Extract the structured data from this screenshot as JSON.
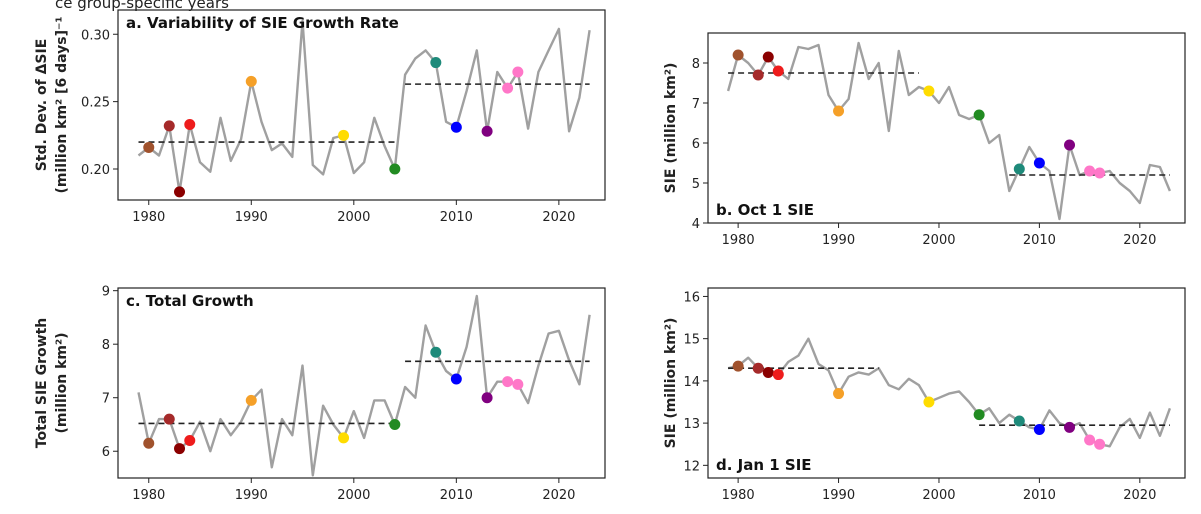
{
  "figure": {
    "top_caption": "ce group-specific years"
  },
  "colors": {
    "line": "#a0a0a0",
    "dashed": "#222222",
    "markers": {
      "1980": "#a0522d",
      "1982": "#a52a2a",
      "1983": "#8b0000",
      "1984": "#ee1c1c",
      "1990": "#f5a028",
      "1999": "#ffdc00",
      "2004": "#228b22",
      "2008": "#1e8a7a",
      "2010": "#0000ff",
      "2013": "#800080",
      "2015": "#ff77c8",
      "2016": "#ff77c8"
    }
  },
  "chart_data": [
    {
      "id": "a",
      "type": "line",
      "title": "a. Variability of SIE Growth Rate",
      "ylabel": [
        "Std. Dev. of ΔSIE",
        "(million km² [6 days]⁻¹"
      ],
      "xlim": [
        1977,
        2024.5
      ],
      "ylim": [
        0.177,
        0.318
      ],
      "xticks": [
        1980,
        1990,
        2000,
        2010,
        2020
      ],
      "yticks": [
        0.2,
        0.25,
        0.3
      ],
      "ytick_labels": [
        "0.20",
        "0.25",
        "0.30"
      ],
      "x": [
        1979,
        1980,
        1981,
        1982,
        1983,
        1984,
        1985,
        1986,
        1987,
        1988,
        1989,
        1990,
        1991,
        1992,
        1993,
        1994,
        1995,
        1996,
        1997,
        1998,
        1999,
        2000,
        2001,
        2002,
        2003,
        2004,
        2005,
        2006,
        2007,
        2008,
        2009,
        2010,
        2011,
        2012,
        2013,
        2014,
        2015,
        2016,
        2017,
        2018,
        2019,
        2020,
        2021,
        2022,
        2023
      ],
      "y": [
        0.21,
        0.216,
        0.21,
        0.232,
        0.183,
        0.233,
        0.205,
        0.198,
        0.238,
        0.206,
        0.222,
        0.265,
        0.235,
        0.214,
        0.219,
        0.209,
        0.31,
        0.203,
        0.196,
        0.223,
        0.225,
        0.197,
        0.205,
        0.238,
        0.217,
        0.2,
        0.27,
        0.282,
        0.288,
        0.279,
        0.235,
        0.231,
        0.258,
        0.288,
        0.228,
        0.272,
        0.26,
        0.272,
        0.23,
        0.272,
        0.288,
        0.304,
        0.228,
        0.253,
        0.303
      ],
      "markers": [
        [
          1980,
          0.216
        ],
        [
          1982,
          0.232
        ],
        [
          1983,
          0.183
        ],
        [
          1984,
          0.233
        ],
        [
          1990,
          0.265
        ],
        [
          1999,
          0.225
        ],
        [
          2004,
          0.2
        ],
        [
          2008,
          0.279
        ],
        [
          2010,
          0.231
        ],
        [
          2013,
          0.228
        ],
        [
          2015,
          0.26
        ],
        [
          2016,
          0.272
        ]
      ],
      "means": [
        {
          "x": [
            1979,
            2004
          ],
          "y": 0.22
        },
        {
          "x": [
            2005,
            2023
          ],
          "y": 0.263
        }
      ]
    },
    {
      "id": "b",
      "type": "line",
      "title": "b. Oct 1 SIE",
      "ylabel": [
        "SIE (million km²)"
      ],
      "xlim": [
        1977,
        2024.5
      ],
      "ylim": [
        4,
        8.75
      ],
      "xticks": [
        1980,
        1990,
        2000,
        2010,
        2020
      ],
      "yticks": [
        4,
        5,
        6,
        7,
        8
      ],
      "ytick_labels": [
        "4",
        "5",
        "6",
        "7",
        "8"
      ],
      "x": [
        1979,
        1980,
        1981,
        1982,
        1983,
        1984,
        1985,
        1986,
        1987,
        1988,
        1989,
        1990,
        1991,
        1992,
        1993,
        1994,
        1995,
        1996,
        1997,
        1998,
        1999,
        2000,
        2001,
        2002,
        2003,
        2004,
        2005,
        2006,
        2007,
        2008,
        2009,
        2010,
        2011,
        2012,
        2013,
        2014,
        2015,
        2016,
        2017,
        2018,
        2019,
        2020,
        2021,
        2022,
        2023
      ],
      "y": [
        7.3,
        8.2,
        8.0,
        7.7,
        8.15,
        7.8,
        7.6,
        8.4,
        8.35,
        8.45,
        7.2,
        6.8,
        7.1,
        8.5,
        7.6,
        8.0,
        6.3,
        8.3,
        7.2,
        7.4,
        7.3,
        7.0,
        7.4,
        6.7,
        6.6,
        6.7,
        6.0,
        6.2,
        4.8,
        5.35,
        5.9,
        5.5,
        5.3,
        4.1,
        5.95,
        5.2,
        5.3,
        5.25,
        5.3,
        5.0,
        4.8,
        4.5,
        5.45,
        5.4,
        4.8
      ],
      "markers": [
        [
          1980,
          8.2
        ],
        [
          1982,
          7.7
        ],
        [
          1983,
          8.15
        ],
        [
          1984,
          7.8
        ],
        [
          1990,
          6.8
        ],
        [
          1999,
          7.3
        ],
        [
          2004,
          6.7
        ],
        [
          2008,
          5.35
        ],
        [
          2010,
          5.5
        ],
        [
          2013,
          5.95
        ],
        [
          2015,
          5.3
        ],
        [
          2016,
          5.25
        ]
      ],
      "means": [
        {
          "x": [
            1979,
            1998
          ],
          "y": 7.75
        },
        {
          "x": [
            2007,
            2023
          ],
          "y": 5.2
        }
      ]
    },
    {
      "id": "c",
      "type": "line",
      "title": "c. Total Growth",
      "ylabel": [
        "Total SIE Growth",
        "(million km²)"
      ],
      "xlim": [
        1977,
        2024.5
      ],
      "ylim": [
        5.5,
        9.05
      ],
      "xticks": [
        1980,
        1990,
        2000,
        2010,
        2020
      ],
      "yticks": [
        6,
        7,
        8,
        9
      ],
      "ytick_labels": [
        "6",
        "7",
        "8",
        "9"
      ],
      "x": [
        1979,
        1980,
        1981,
        1982,
        1983,
        1984,
        1985,
        1986,
        1987,
        1988,
        1989,
        1990,
        1991,
        1992,
        1993,
        1994,
        1995,
        1996,
        1997,
        1998,
        1999,
        2000,
        2001,
        2002,
        2003,
        2004,
        2005,
        2006,
        2007,
        2008,
        2009,
        2010,
        2011,
        2012,
        2013,
        2014,
        2015,
        2016,
        2017,
        2018,
        2019,
        2020,
        2021,
        2022,
        2023
      ],
      "y": [
        7.1,
        6.15,
        6.6,
        6.6,
        6.05,
        6.2,
        6.55,
        6.0,
        6.6,
        6.3,
        6.55,
        6.95,
        7.15,
        5.7,
        6.6,
        6.3,
        7.6,
        5.55,
        6.85,
        6.5,
        6.25,
        6.75,
        6.25,
        6.95,
        6.95,
        6.5,
        7.2,
        7.0,
        8.35,
        7.85,
        7.5,
        7.35,
        7.95,
        8.9,
        7.0,
        7.3,
        7.3,
        7.25,
        6.9,
        7.6,
        8.2,
        8.25,
        7.7,
        7.25,
        8.55
      ],
      "markers": [
        [
          1980,
          6.15
        ],
        [
          1982,
          6.6
        ],
        [
          1983,
          6.05
        ],
        [
          1984,
          6.2
        ],
        [
          1990,
          6.95
        ],
        [
          1999,
          6.25
        ],
        [
          2004,
          6.5
        ],
        [
          2008,
          7.85
        ],
        [
          2010,
          7.35
        ],
        [
          2013,
          7.0
        ],
        [
          2015,
          7.3
        ],
        [
          2016,
          7.25
        ]
      ],
      "means": [
        {
          "x": [
            1979,
            2004
          ],
          "y": 6.52
        },
        {
          "x": [
            2005,
            2023
          ],
          "y": 7.68
        }
      ]
    },
    {
      "id": "d",
      "type": "line",
      "title": "d. Jan 1 SIE",
      "ylabel": [
        "SIE (million km²)"
      ],
      "xlim": [
        1977,
        2024.5
      ],
      "ylim": [
        11.7,
        16.2
      ],
      "xticks": [
        1980,
        1990,
        2000,
        2010,
        2020
      ],
      "yticks": [
        12,
        13,
        14,
        15,
        16
      ],
      "ytick_labels": [
        "12",
        "13",
        "14",
        "15",
        "16"
      ],
      "x": [
        1979,
        1980,
        1981,
        1982,
        1983,
        1984,
        1985,
        1986,
        1987,
        1988,
        1989,
        1990,
        1991,
        1992,
        1993,
        1994,
        1995,
        1996,
        1997,
        1998,
        1999,
        2000,
        2001,
        2002,
        2003,
        2004,
        2005,
        2006,
        2007,
        2008,
        2009,
        2010,
        2011,
        2012,
        2013,
        2014,
        2015,
        2016,
        2017,
        2018,
        2019,
        2020,
        2021,
        2022,
        2023
      ],
      "y": [
        14.3,
        14.35,
        14.55,
        14.3,
        14.2,
        14.15,
        14.45,
        14.6,
        15.0,
        14.4,
        14.25,
        13.7,
        14.1,
        14.2,
        14.15,
        14.3,
        13.9,
        13.8,
        14.05,
        13.9,
        13.5,
        13.6,
        13.7,
        13.75,
        13.5,
        13.2,
        13.35,
        13.0,
        13.2,
        13.05,
        12.9,
        12.85,
        13.3,
        13.0,
        12.9,
        13.0,
        12.6,
        12.5,
        12.45,
        12.9,
        13.1,
        12.65,
        13.25,
        12.7,
        13.35
      ],
      "markers": [
        [
          1980,
          14.35
        ],
        [
          1982,
          14.3
        ],
        [
          1983,
          14.2
        ],
        [
          1984,
          14.15
        ],
        [
          1990,
          13.7
        ],
        [
          1999,
          13.5
        ],
        [
          2004,
          13.2
        ],
        [
          2008,
          13.05
        ],
        [
          2010,
          12.85
        ],
        [
          2013,
          12.9
        ],
        [
          2015,
          12.6
        ],
        [
          2016,
          12.5
        ]
      ],
      "means": [
        {
          "x": [
            1979,
            1994
          ],
          "y": 14.3
        },
        {
          "x": [
            2004,
            2023
          ],
          "y": 12.95
        }
      ]
    }
  ]
}
